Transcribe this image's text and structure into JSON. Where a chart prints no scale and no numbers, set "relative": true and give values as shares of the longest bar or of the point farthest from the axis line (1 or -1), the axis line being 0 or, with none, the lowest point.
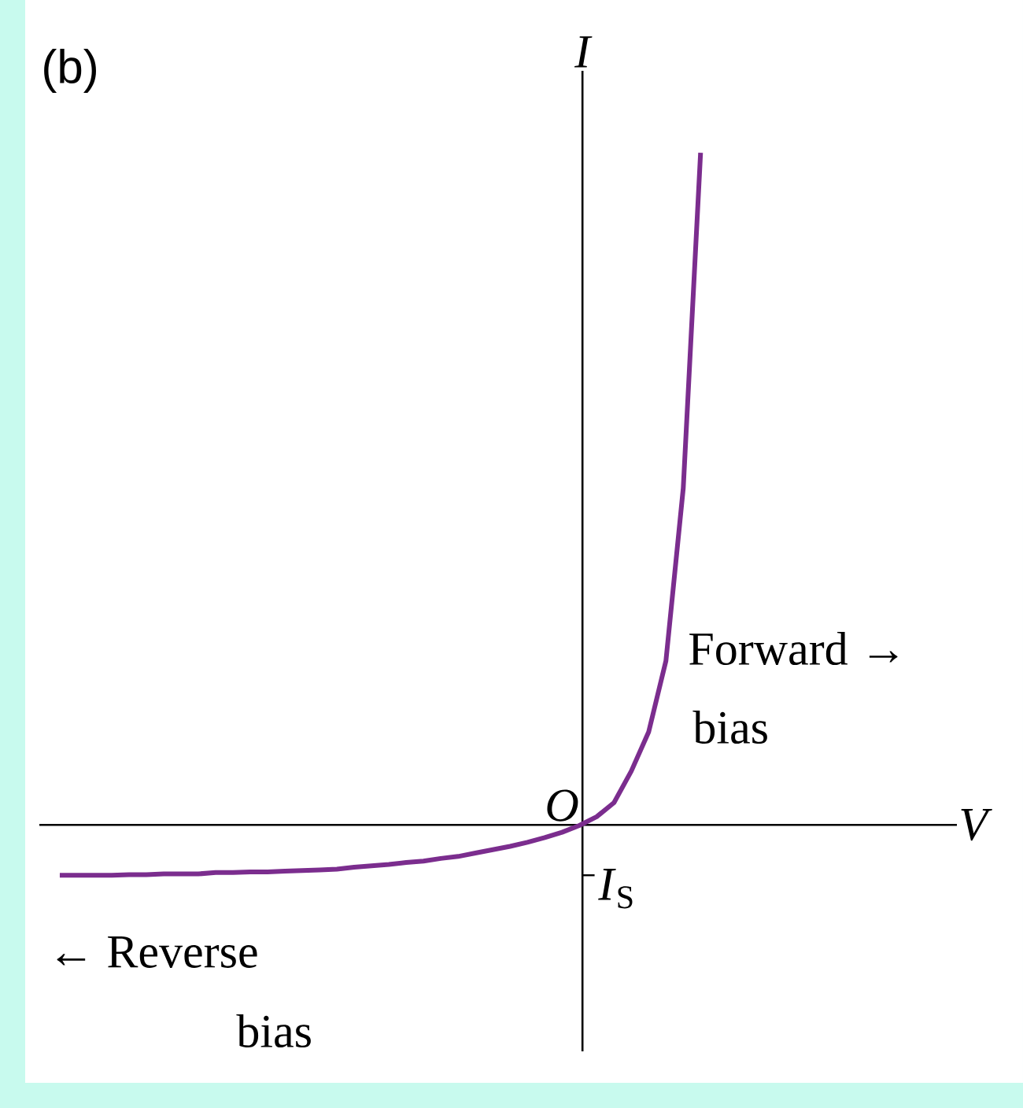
{
  "chart_data": {
    "type": "line",
    "title": "(b)",
    "ylabel": "I",
    "relative": true,
    "marker": "none",
    "line_style": "solid",
    "categories": [
      null,
      null,
      null,
      null,
      null,
      null,
      null,
      null,
      null,
      null,
      null,
      null,
      null,
      null,
      null,
      null,
      null,
      null,
      null,
      null,
      null,
      null,
      null,
      null,
      null,
      null,
      null,
      null,
      null,
      null,
      null,
      null,
      null,
      null,
      null,
      null,
      null,
      null
    ],
    "series": [
      {
        "color": "#7b2d8e",
        "values": [
          -0.075,
          -0.075,
          -0.075,
          -0.075,
          -0.074,
          -0.074,
          -0.073,
          -0.073,
          -0.073,
          -0.071,
          -0.071,
          -0.07,
          -0.07,
          -0.069,
          -0.068,
          -0.067,
          -0.066,
          -0.063,
          -0.061,
          -0.059,
          -0.056,
          -0.054,
          -0.05,
          -0.047,
          -0.042,
          -0.037,
          -0.032,
          -0.026,
          -0.019,
          -0.011,
          -0.001,
          0.012,
          0.033,
          0.08,
          0.138,
          0.244,
          0.501,
          1
        ]
      }
    ],
    "annotations": [
      "O",
      "*I*$_{S}$",
      "Forward →",
      "bias",
      "← Reverse",
      "bias",
      "V"
    ]
  }
}
